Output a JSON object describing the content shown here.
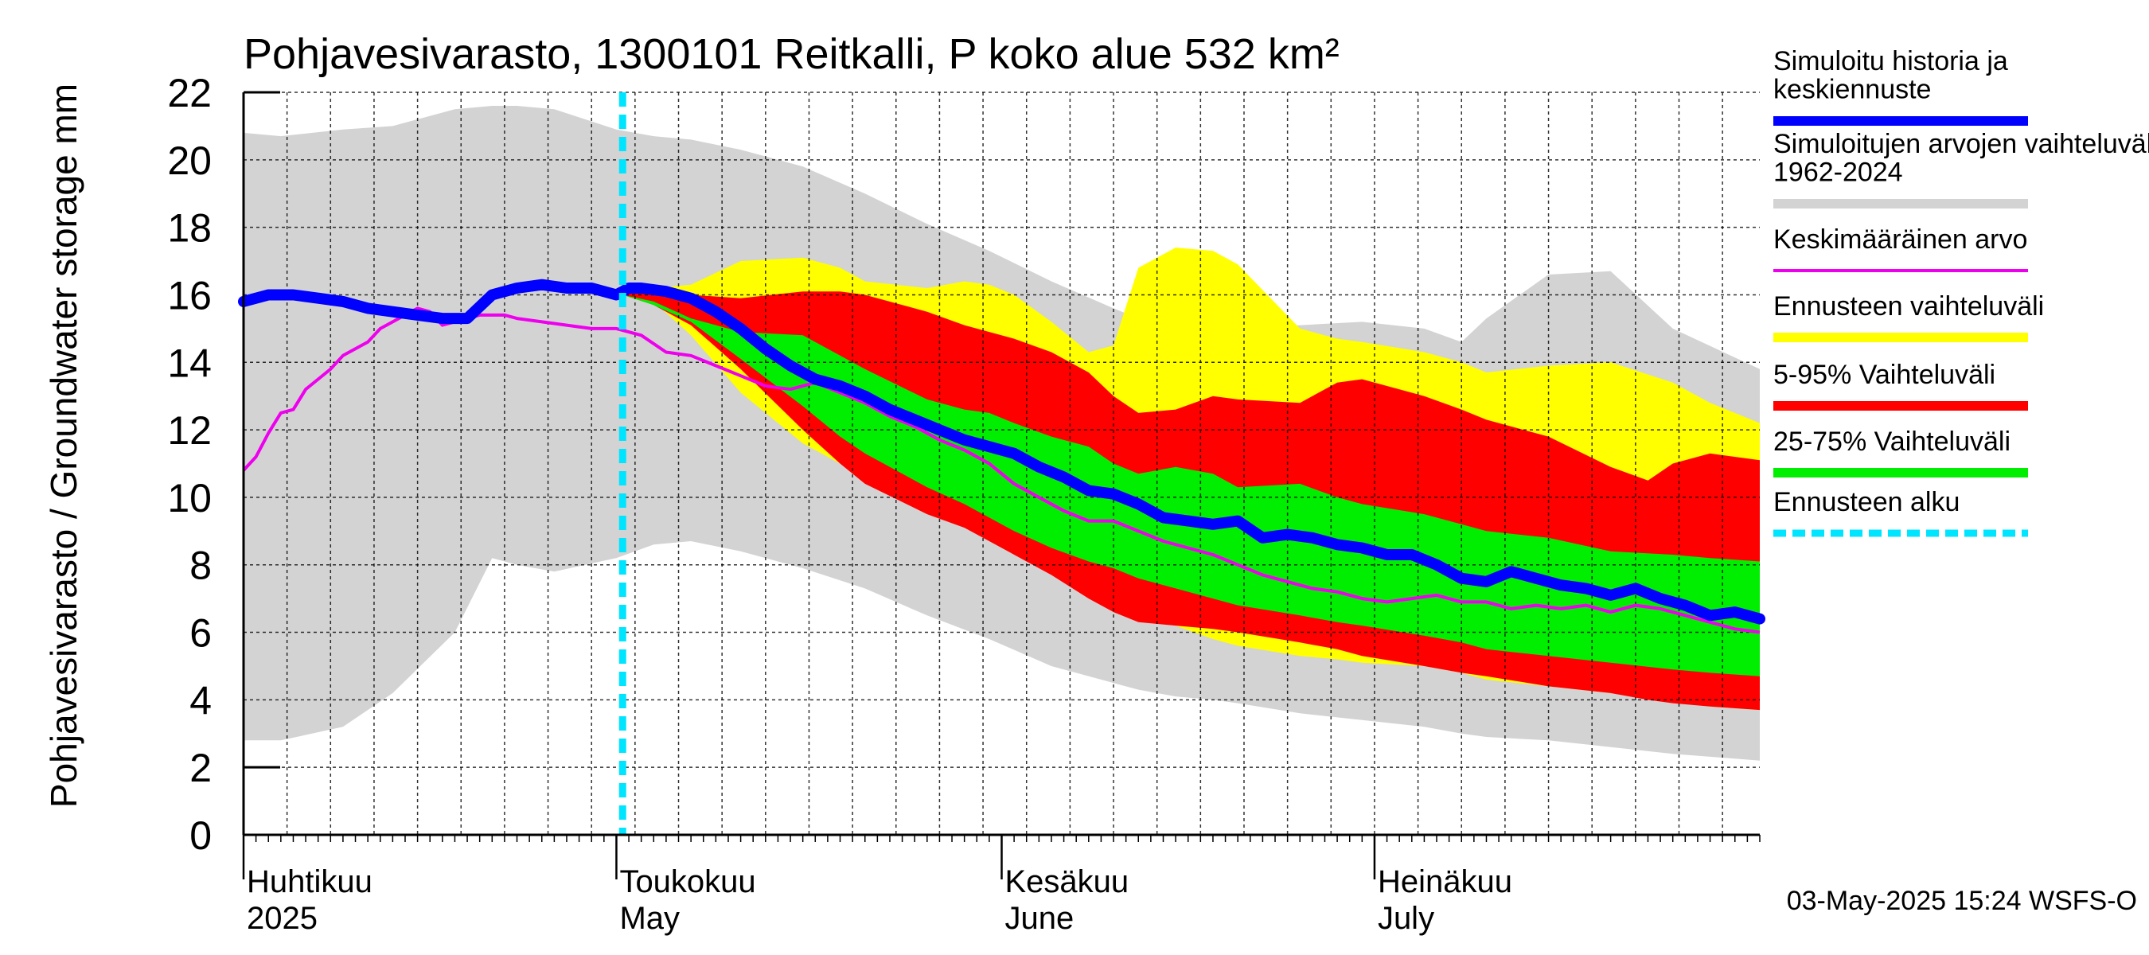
{
  "chart_data": {
    "type": "area",
    "title": "Pohjavesivarasto, 1300101 Reitkalli, P koko alue 532 km²",
    "ylabel": "Pohjavesivarasto / Groundwater storage   mm",
    "ylim": [
      0,
      22
    ],
    "yticks": [
      0,
      2,
      4,
      6,
      8,
      10,
      12,
      14,
      16,
      18,
      20,
      22
    ],
    "x_range_days": [
      0,
      122
    ],
    "x_unit": "days since 2025-04-01",
    "forecast_start_day": 30.5,
    "month_labels": [
      {
        "fi": "Huhtikuu",
        "en": "2025",
        "day": 0
      },
      {
        "fi": "Toukokuu",
        "en": "May",
        "day": 30
      },
      {
        "fi": "Kesäkuu",
        "en": "June",
        "day": 61
      },
      {
        "fi": "Heinäkuu",
        "en": "July",
        "day": 91
      }
    ],
    "footer": "03-May-2025 15:24 WSFS-O",
    "colors": {
      "history_range": "#d3d3d3",
      "forecast_range": "#ffff00",
      "p5_95": "#ff0000",
      "p25_75": "#00ee00",
      "mean": "#ee00ee",
      "simulated": "#0000ff",
      "forecast_start": "#00e5ff"
    },
    "legend": [
      {
        "label": "Simuloitu historia ja keskiennuste",
        "key": "simulated",
        "style": "thick"
      },
      {
        "label": "Simuloitujen arvojen vaihteluväli 1962-2024",
        "key": "history_range",
        "style": "thick"
      },
      {
        "label": "Keskimääräinen arvo",
        "key": "mean",
        "style": "thin"
      },
      {
        "label": "Ennusteen vaihteluväli",
        "key": "forecast_range",
        "style": "thick"
      },
      {
        "label": "5-95% Vaihteluväli",
        "key": "p5_95",
        "style": "thick"
      },
      {
        "label": "25-75% Vaihteluväli",
        "key": "p25_75",
        "style": "thick"
      },
      {
        "label": "Ennusteen alku",
        "key": "forecast_start",
        "style": "dashed"
      }
    ],
    "series": {
      "history_range": {
        "x": [
          0,
          3,
          8,
          12,
          17,
          20,
          22,
          25,
          30,
          33,
          36,
          40,
          45,
          50,
          55,
          60,
          65,
          70,
          72,
          75,
          78,
          80,
          85,
          90,
          95,
          98,
          100,
          105,
          110,
          115,
          122
        ],
        "upper": [
          20.8,
          20.7,
          20.9,
          21.0,
          21.5,
          21.6,
          21.6,
          21.5,
          20.9,
          20.7,
          20.6,
          20.3,
          19.8,
          19.0,
          18.1,
          17.3,
          16.4,
          15.6,
          15.3,
          15.1,
          15.0,
          15.0,
          15.1,
          15.2,
          15.0,
          14.6,
          15.3,
          16.6,
          16.7,
          15.0,
          13.8
        ],
        "lower": [
          2.8,
          2.8,
          3.2,
          4.2,
          6.0,
          8.2,
          8.0,
          7.8,
          8.2,
          8.6,
          8.7,
          8.4,
          7.9,
          7.3,
          6.5,
          5.8,
          5.0,
          4.5,
          4.3,
          4.1,
          4.0,
          3.9,
          3.6,
          3.4,
          3.2,
          3.0,
          2.9,
          2.8,
          2.6,
          2.4,
          2.2
        ]
      },
      "forecast_range": {
        "x": [
          30.5,
          33,
          36,
          40,
          45,
          48,
          50,
          55,
          58,
          60,
          62,
          65,
          68,
          70,
          72,
          75,
          78,
          80,
          85,
          88,
          90,
          95,
          98,
          100,
          105,
          110,
          115,
          118,
          122
        ],
        "upper": [
          16.1,
          16.2,
          16.3,
          17.0,
          17.1,
          16.8,
          16.4,
          16.2,
          16.4,
          16.3,
          16.0,
          15.2,
          14.3,
          14.5,
          16.8,
          17.4,
          17.3,
          16.9,
          15.0,
          14.7,
          14.6,
          14.3,
          14.0,
          13.7,
          13.9,
          14.0,
          13.4,
          12.8,
          12.2
        ],
        "lower": [
          16.0,
          15.8,
          14.8,
          13.1,
          11.6,
          11.0,
          10.6,
          9.9,
          9.4,
          9.0,
          8.6,
          8.0,
          7.4,
          7.0,
          6.6,
          6.2,
          5.8,
          5.6,
          5.3,
          5.2,
          5.1,
          5.0,
          4.8,
          4.6,
          4.4,
          4.2,
          4.0,
          3.8,
          3.7
        ]
      },
      "p5_95": {
        "x": [
          30.5,
          33,
          36,
          40,
          45,
          48,
          50,
          55,
          58,
          60,
          62,
          65,
          68,
          70,
          72,
          75,
          78,
          80,
          85,
          88,
          90,
          95,
          98,
          100,
          105,
          110,
          113,
          115,
          118,
          122
        ],
        "upper": [
          16.1,
          16.1,
          16.0,
          15.9,
          16.1,
          16.1,
          16.0,
          15.5,
          15.1,
          14.9,
          14.7,
          14.3,
          13.7,
          13.0,
          12.5,
          12.6,
          13.0,
          12.9,
          12.8,
          13.4,
          13.5,
          13.0,
          12.6,
          12.3,
          11.8,
          10.9,
          10.5,
          11.0,
          11.3,
          11.1
        ],
        "lower": [
          16.0,
          15.7,
          15.1,
          13.8,
          12.0,
          11.0,
          10.4,
          9.5,
          9.1,
          8.7,
          8.3,
          7.7,
          7.0,
          6.6,
          6.3,
          6.2,
          6.1,
          6.0,
          5.7,
          5.5,
          5.3,
          5.0,
          4.8,
          4.7,
          4.4,
          4.2,
          4.0,
          3.9,
          3.8,
          3.7
        ]
      },
      "p25_75": {
        "x": [
          30.5,
          33,
          36,
          40,
          45,
          48,
          50,
          55,
          58,
          60,
          62,
          65,
          68,
          70,
          72,
          75,
          78,
          80,
          85,
          88,
          90,
          95,
          98,
          100,
          105,
          110,
          115,
          118,
          122
        ],
        "upper": [
          16.0,
          15.8,
          15.3,
          14.9,
          14.8,
          14.2,
          13.8,
          12.9,
          12.6,
          12.5,
          12.2,
          11.8,
          11.5,
          11.0,
          10.7,
          10.9,
          10.7,
          10.3,
          10.4,
          10.0,
          9.8,
          9.5,
          9.2,
          9.0,
          8.8,
          8.4,
          8.3,
          8.2,
          8.1
        ],
        "lower": [
          16.0,
          15.7,
          15.2,
          14.1,
          12.7,
          11.8,
          11.3,
          10.3,
          9.8,
          9.4,
          9.0,
          8.5,
          8.1,
          7.9,
          7.6,
          7.3,
          7.0,
          6.8,
          6.5,
          6.3,
          6.2,
          5.9,
          5.7,
          5.5,
          5.3,
          5.1,
          4.9,
          4.8,
          4.7
        ]
      },
      "simulated": {
        "x": [
          0,
          2,
          4,
          6,
          8,
          10,
          12,
          14,
          16,
          18,
          20,
          22,
          24,
          26,
          28,
          29,
          30,
          31,
          32,
          34,
          36,
          38,
          40,
          42,
          44,
          46,
          48,
          50,
          52,
          54,
          56,
          58,
          60,
          62,
          64,
          66,
          68,
          70,
          72,
          74,
          76,
          78,
          80,
          82,
          84,
          86,
          88,
          90,
          92,
          94,
          96,
          98,
          100,
          102,
          104,
          106,
          108,
          110,
          112,
          114,
          116,
          118,
          120,
          122
        ],
        "y": [
          15.8,
          16.0,
          16.0,
          15.9,
          15.8,
          15.6,
          15.5,
          15.4,
          15.3,
          15.3,
          16.0,
          16.2,
          16.3,
          16.2,
          16.2,
          16.1,
          16.0,
          16.2,
          16.2,
          16.1,
          15.9,
          15.5,
          15.0,
          14.4,
          13.9,
          13.5,
          13.3,
          13.0,
          12.6,
          12.3,
          12.0,
          11.7,
          11.5,
          11.3,
          10.9,
          10.6,
          10.2,
          10.1,
          9.8,
          9.4,
          9.3,
          9.2,
          9.3,
          8.8,
          8.9,
          8.8,
          8.6,
          8.5,
          8.3,
          8.3,
          8.0,
          7.6,
          7.5,
          7.8,
          7.6,
          7.4,
          7.3,
          7.1,
          7.3,
          7.0,
          6.8,
          6.5,
          6.6,
          6.4
        ]
      },
      "mean": {
        "x": [
          0,
          1,
          2,
          3,
          4,
          5,
          6,
          7,
          8,
          9,
          10,
          11,
          12,
          13,
          14,
          15,
          16,
          17,
          18,
          19,
          20,
          21,
          22,
          24,
          26,
          28,
          30,
          32,
          34,
          36,
          38,
          40,
          42,
          44,
          46,
          48,
          50,
          52,
          54,
          56,
          58,
          60,
          62,
          64,
          66,
          68,
          70,
          72,
          74,
          76,
          78,
          80,
          82,
          84,
          86,
          88,
          90,
          92,
          94,
          96,
          98,
          100,
          102,
          104,
          106,
          108,
          110,
          112,
          114,
          116,
          118,
          120,
          122
        ],
        "y": [
          10.8,
          11.2,
          11.9,
          12.5,
          12.6,
          13.2,
          13.5,
          13.8,
          14.2,
          14.4,
          14.6,
          15.0,
          15.2,
          15.4,
          15.6,
          15.5,
          15.1,
          15.2,
          15.3,
          15.4,
          15.4,
          15.4,
          15.3,
          15.2,
          15.1,
          15.0,
          15.0,
          14.8,
          14.3,
          14.2,
          13.9,
          13.6,
          13.3,
          13.2,
          13.4,
          13.1,
          12.8,
          12.4,
          12.1,
          11.7,
          11.4,
          11.0,
          10.4,
          10.0,
          9.6,
          9.3,
          9.3,
          9.0,
          8.7,
          8.5,
          8.3,
          8.0,
          7.7,
          7.5,
          7.3,
          7.2,
          7.0,
          6.9,
          7.0,
          7.1,
          6.9,
          6.9,
          6.7,
          6.8,
          6.7,
          6.8,
          6.6,
          6.8,
          6.7,
          6.5,
          6.3,
          6.1,
          6.0
        ]
      }
    }
  }
}
